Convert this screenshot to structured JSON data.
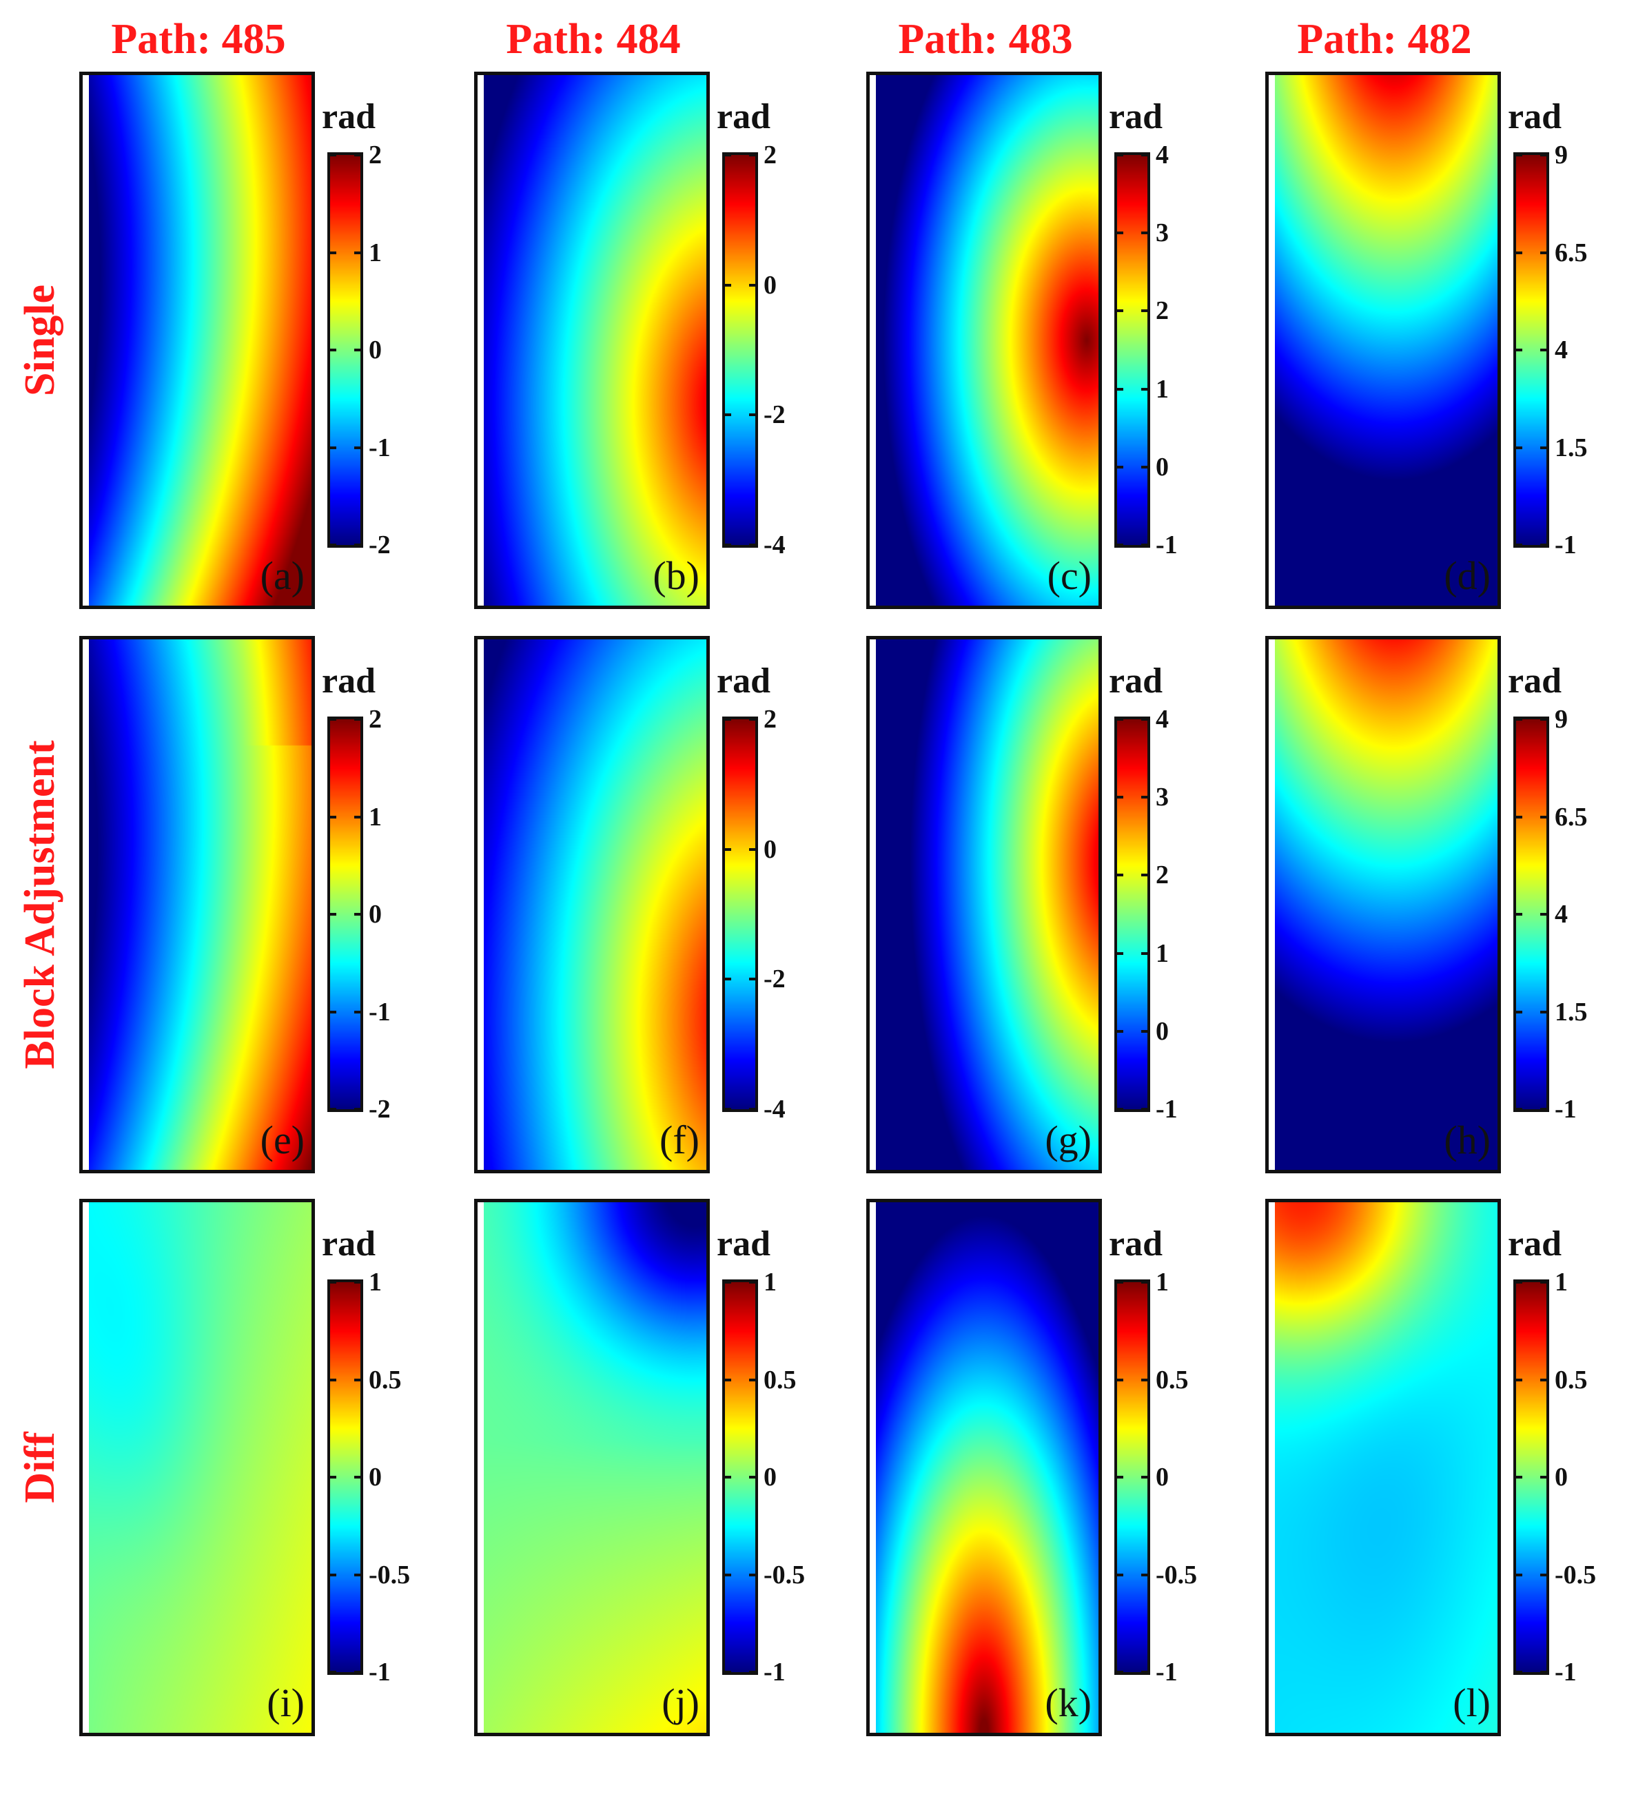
{
  "column_titles": [
    "Path: 485",
    "Path: 484",
    "Path: 483",
    "Path: 482"
  ],
  "row_titles": [
    "Single",
    "Block Adjustment",
    "Diff"
  ],
  "chart_data": {
    "type": "heatmap",
    "colormap": "jet",
    "unit": "rad",
    "panels": [
      {
        "label": "(a)",
        "row": 0,
        "col": 0,
        "field": "s485",
        "range": [
          -2,
          2
        ],
        "ticks": [
          2,
          1,
          0,
          -1,
          -2
        ],
        "tick_labels": [
          "2",
          "1",
          "0",
          "-1",
          "-2"
        ]
      },
      {
        "label": "(b)",
        "row": 0,
        "col": 1,
        "field": "s484",
        "range": [
          -4,
          2
        ],
        "ticks": [
          2,
          0,
          -2,
          -4
        ],
        "tick_labels": [
          "2",
          "0",
          "-2",
          "-4"
        ]
      },
      {
        "label": "(c)",
        "row": 0,
        "col": 2,
        "field": "s483",
        "range": [
          -1,
          4
        ],
        "ticks": [
          4,
          3,
          2,
          1,
          0,
          -1
        ],
        "tick_labels": [
          "4",
          "3",
          "2",
          "1",
          "0",
          "-1"
        ]
      },
      {
        "label": "(d)",
        "row": 0,
        "col": 3,
        "field": "s482",
        "range": [
          -1,
          9
        ],
        "ticks": [
          9,
          6.5,
          4,
          1.5,
          -1
        ],
        "tick_labels": [
          "9",
          "6.5",
          "4",
          "1.5",
          "-1"
        ]
      },
      {
        "label": "(e)",
        "row": 1,
        "col": 0,
        "field": "b485",
        "range": [
          -2,
          2
        ],
        "ticks": [
          2,
          1,
          0,
          -1,
          -2
        ],
        "tick_labels": [
          "2",
          "1",
          "0",
          "-1",
          "-2"
        ]
      },
      {
        "label": "(f)",
        "row": 1,
        "col": 1,
        "field": "b484",
        "range": [
          -4,
          2
        ],
        "ticks": [
          2,
          0,
          -2,
          -4
        ],
        "tick_labels": [
          "2",
          "0",
          "-2",
          "-4"
        ]
      },
      {
        "label": "(g)",
        "row": 1,
        "col": 2,
        "field": "b483",
        "range": [
          -1,
          4
        ],
        "ticks": [
          4,
          3,
          2,
          1,
          0,
          -1
        ],
        "tick_labels": [
          "4",
          "3",
          "2",
          "1",
          "0",
          "-1"
        ]
      },
      {
        "label": "(h)",
        "row": 1,
        "col": 3,
        "field": "b482",
        "range": [
          -1,
          9
        ],
        "ticks": [
          9,
          6.5,
          4,
          1.5,
          -1
        ],
        "tick_labels": [
          "9",
          "6.5",
          "4",
          "1.5",
          "-1"
        ]
      },
      {
        "label": "(i)",
        "row": 2,
        "col": 0,
        "field": "d485",
        "range": [
          -1,
          1
        ],
        "ticks": [
          1,
          0.5,
          0,
          -0.5,
          -1
        ],
        "tick_labels": [
          "1",
          "0.5",
          "0",
          "-0.5",
          "-1"
        ]
      },
      {
        "label": "(j)",
        "row": 2,
        "col": 1,
        "field": "d484",
        "range": [
          -1,
          1
        ],
        "ticks": [
          1,
          0.5,
          0,
          -0.5,
          -1
        ],
        "tick_labels": [
          "1",
          "0.5",
          "0",
          "-0.5",
          "-1"
        ]
      },
      {
        "label": "(k)",
        "row": 2,
        "col": 2,
        "field": "d483",
        "range": [
          -1,
          1
        ],
        "ticks": [
          1,
          0.5,
          0,
          -0.5,
          -1
        ],
        "tick_labels": [
          "1",
          "0.5",
          "0",
          "-0.5",
          "-1"
        ]
      },
      {
        "label": "(l)",
        "row": 2,
        "col": 3,
        "field": "d482",
        "range": [
          -1,
          1
        ],
        "ticks": [
          1,
          0.5,
          0,
          -0.5,
          -1
        ],
        "tick_labels": [
          "1",
          "0.5",
          "0",
          "-0.5",
          "-1"
        ]
      }
    ]
  }
}
